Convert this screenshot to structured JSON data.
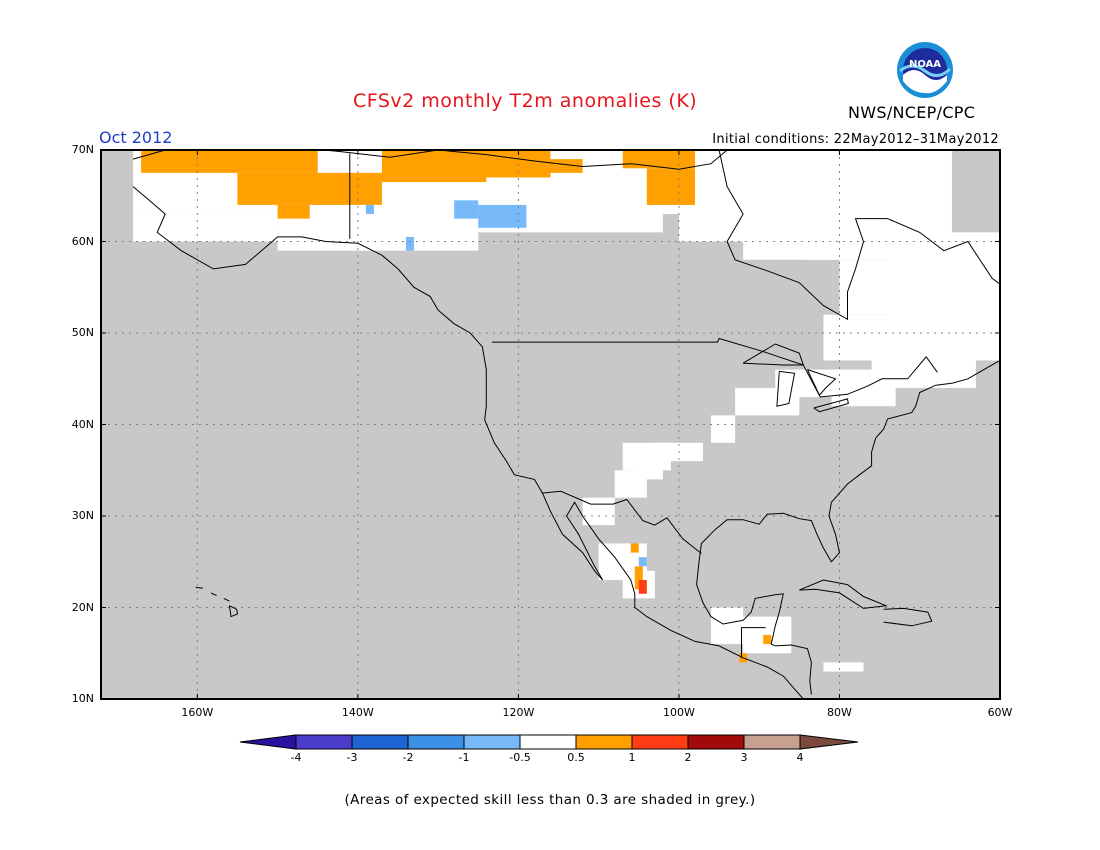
{
  "header": {
    "title": "CFSv2 monthly T2m anomalies (K)",
    "org": "NWS/NCEP/CPC",
    "logo_text": "NOAA",
    "month": "Oct 2012",
    "init": "Initial conditions: 22May2012–31May2012"
  },
  "map": {
    "lon_range": [
      -172,
      -60
    ],
    "lat_range": [
      10,
      70
    ],
    "lat_labels": [
      {
        "lat": 70,
        "label": "70N"
      },
      {
        "lat": 60,
        "label": "60N"
      },
      {
        "lat": 50,
        "label": "50N"
      },
      {
        "lat": 40,
        "label": "40N"
      },
      {
        "lat": 30,
        "label": "30N"
      },
      {
        "lat": 20,
        "label": "20N"
      },
      {
        "lat": 10,
        "label": "10N"
      }
    ],
    "lon_labels": [
      {
        "lon": -160,
        "label": "160W"
      },
      {
        "lon": -140,
        "label": "140W"
      },
      {
        "lon": -120,
        "label": "120W"
      },
      {
        "lon": -100,
        "label": "100W"
      },
      {
        "lon": -80,
        "label": "80W"
      },
      {
        "lon": -60,
        "label": "60W"
      }
    ],
    "background": "grey (skill < 0.3)",
    "colors": {
      "grey": "#c8c8c8",
      "white": "#ffffff",
      "orange": "#ffa000",
      "light_blue": "#78b9fa",
      "red_orange": "#ff3c14"
    },
    "anomaly_regions": [
      {
        "category": "0.5 to 1",
        "area": "northern Alaska / Beaufort coast"
      },
      {
        "category": "0.5 to 1",
        "area": "Arctic Canada near Banks/Victoria Islands"
      },
      {
        "category": "-1 to -0.5",
        "area": "Yukon / NW Territories patch"
      },
      {
        "category": "-1 to -0.5",
        "area": "southeast Alaska panhandle"
      },
      {
        "category": "0.5 to 1",
        "area": "west-central Mexico coast"
      },
      {
        "category": "1 to 2",
        "area": "west-central Mexico coast"
      },
      {
        "category": "0.5 to 1",
        "area": "Central America"
      }
    ]
  },
  "colorbar": {
    "colors": [
      "#2a12a0",
      "#4b3ccc",
      "#1e64d2",
      "#3c91e6",
      "#78b9fa",
      "#ffffff",
      "#ffa000",
      "#ff3c14",
      "#a00a0a",
      "#c8a090",
      "#7a4a3a"
    ],
    "labels": [
      "-4",
      "-3",
      "-2",
      "-1",
      "-0.5",
      "0.5",
      "1",
      "2",
      "3",
      "4"
    ]
  },
  "footnote": "(Areas of expected skill less than 0.3 are shaded in grey.)"
}
